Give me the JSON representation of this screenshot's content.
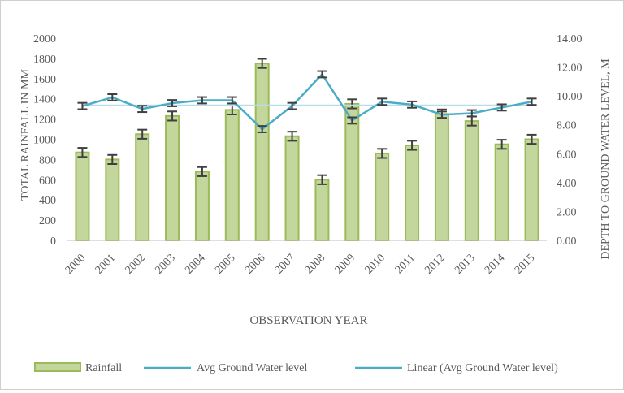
{
  "chart_data": {
    "type": "bar",
    "xlabel": "OBSERVATION YEAR",
    "ylabel": "TOTAL RAINFALL IN MM",
    "y2label": "DEPTH TO GROUND WATER LEVEL, M",
    "categories": [
      "2000",
      "2001",
      "2002",
      "2003",
      "2004",
      "2005",
      "2006",
      "2007",
      "2008",
      "2009",
      "2010",
      "2011",
      "2012",
      "2013",
      "2014",
      "2015"
    ],
    "ylim": [
      0,
      2000
    ],
    "yticks": [
      "0",
      "200",
      "400",
      "600",
      "800",
      "1000",
      "1200",
      "1400",
      "1600",
      "1800",
      "2000"
    ],
    "y2lim": [
      0,
      14
    ],
    "y2ticks": [
      "0.00",
      "2.00",
      "4.00",
      "6.00",
      "8.00",
      "10.00",
      "12.00",
      "14.00"
    ],
    "grid": false,
    "legend_position": "bottom",
    "series": [
      {
        "name": "Rainfall",
        "type": "bar",
        "axis": "left",
        "color": "#9bbb59",
        "values": [
          870,
          800,
          1050,
          1230,
          680,
          1290,
          1750,
          1030,
          600,
          1350,
          860,
          940,
          1250,
          1180,
          950,
          1000
        ]
      },
      {
        "name": "Avg Ground Water level",
        "type": "line",
        "axis": "right",
        "color": "#4bacc6",
        "values": [
          9.3,
          9.9,
          9.1,
          9.5,
          9.7,
          9.7,
          7.7,
          9.3,
          11.5,
          8.3,
          9.6,
          9.4,
          8.7,
          8.8,
          9.2,
          9.6
        ]
      },
      {
        "name": "Linear (Avg Ground Water level)",
        "type": "line",
        "axis": "right",
        "color": "#4bacc6",
        "trendline": true,
        "values": [
          9.35,
          9.35,
          9.35,
          9.35,
          9.35,
          9.35,
          9.35,
          9.35,
          9.35,
          9.35,
          9.35,
          9.35,
          9.35,
          9.35,
          9.35,
          9.35
        ]
      }
    ]
  }
}
